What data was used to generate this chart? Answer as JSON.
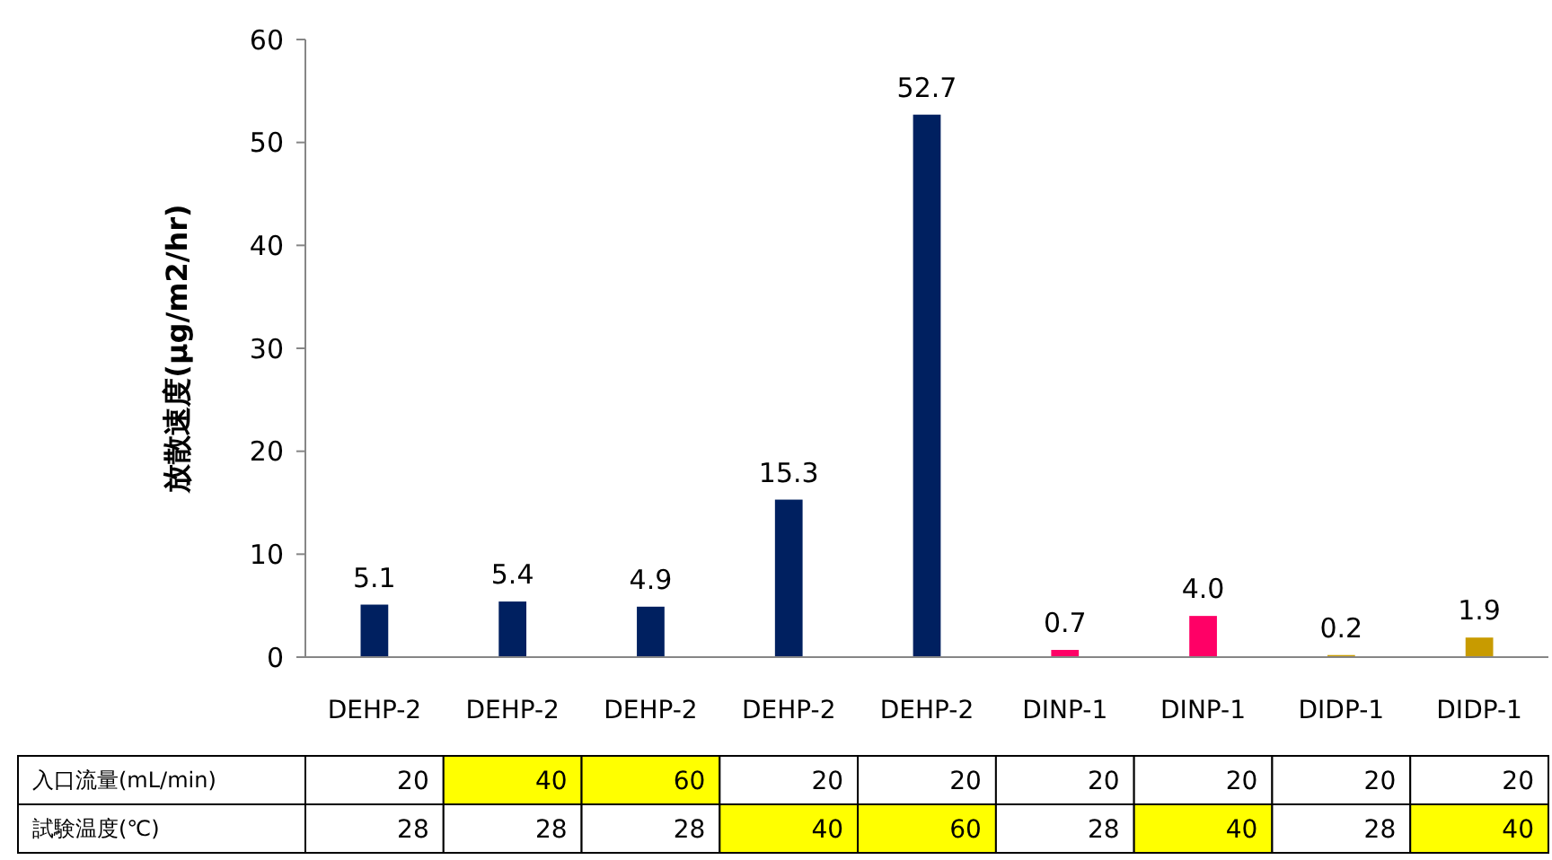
{
  "chart_data": [
    {
      "type": "bar",
      "ylabel": "放散速度(μg/m2/hr)",
      "categories": [
        "DEHP-2",
        "DEHP-2",
        "DEHP-2",
        "DEHP-2",
        "DEHP-2",
        "DINP-1",
        "DINP-1",
        "DIDP-1",
        "DIDP-1"
      ],
      "values": [
        5.1,
        5.4,
        4.9,
        15.3,
        52.7,
        0.7,
        4.0,
        0.2,
        1.9
      ],
      "colors": [
        "#002060",
        "#002060",
        "#002060",
        "#002060",
        "#002060",
        "#ff0066",
        "#ff0066",
        "#c89b00",
        "#c89b00"
      ],
      "value_labels": [
        "5.1",
        "5.4",
        "4.9",
        "15.3",
        "52.7",
        "0.7",
        "4.0",
        "0.2",
        "1.9"
      ],
      "ylim": [
        0,
        60
      ],
      "yticks": [
        0,
        10,
        20,
        30,
        40,
        50,
        60
      ],
      "grid": false
    },
    {
      "type": "heatmap",
      "categories": [
        null,
        null,
        null,
        null,
        null,
        null,
        null,
        null,
        null
      ],
      "y_categories": [
        "入口流量(mL/min)",
        "試験温度(℃)"
      ],
      "cells": [
        [
          20,
          40,
          60,
          20,
          20,
          20,
          20,
          20,
          20
        ],
        [
          28,
          28,
          28,
          40,
          60,
          28,
          40,
          28,
          40
        ]
      ],
      "tick_labels": "y",
      "data_labels": true
    }
  ]
}
